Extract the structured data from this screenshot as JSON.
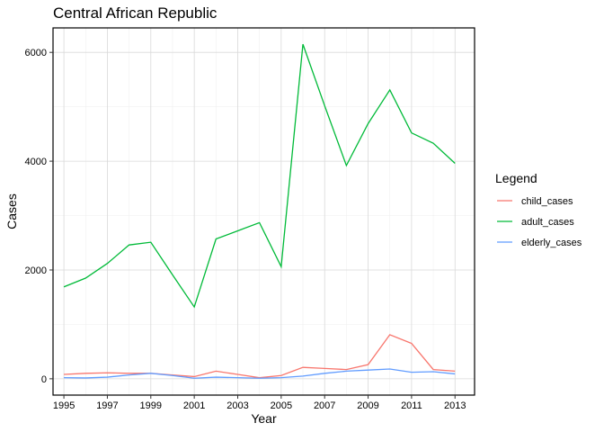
{
  "chart_data": {
    "type": "line",
    "title": "Central African Republic",
    "xlabel": "Year",
    "ylabel": "Cases",
    "x": [
      1995,
      1996,
      1997,
      1998,
      1999,
      2000,
      2001,
      2002,
      2003,
      2004,
      2005,
      2006,
      2007,
      2008,
      2009,
      2010,
      2011,
      2012,
      2013
    ],
    "xticks": [
      1995,
      1997,
      1999,
      2001,
      2003,
      2005,
      2007,
      2009,
      2011,
      2013
    ],
    "yticks": [
      0,
      2000,
      4000,
      6000
    ],
    "xlim": [
      1994.5,
      2013.9
    ],
    "ylim": [
      -300,
      6450
    ],
    "grid": true,
    "legend": {
      "title": "Legend",
      "position": "right"
    },
    "series": [
      {
        "name": "child_cases",
        "color": "#F8766D",
        "values": [
          80,
          100,
          110,
          100,
          100,
          70,
          40,
          140,
          80,
          20,
          60,
          210,
          190,
          170,
          260,
          810,
          650,
          170,
          140
        ]
      },
      {
        "name": "adult_cases",
        "color": "#00BA38",
        "values": [
          1690,
          1850,
          2120,
          2460,
          2510,
          1910,
          1320,
          2570,
          2720,
          2870,
          2060,
          6150,
          5020,
          3920,
          4690,
          5310,
          4520,
          4330,
          3960
        ]
      },
      {
        "name": "elderly_cases",
        "color": "#619CFF",
        "values": [
          20,
          15,
          30,
          70,
          100,
          60,
          10,
          30,
          20,
          10,
          20,
          50,
          100,
          140,
          160,
          180,
          120,
          130,
          90
        ]
      }
    ]
  }
}
